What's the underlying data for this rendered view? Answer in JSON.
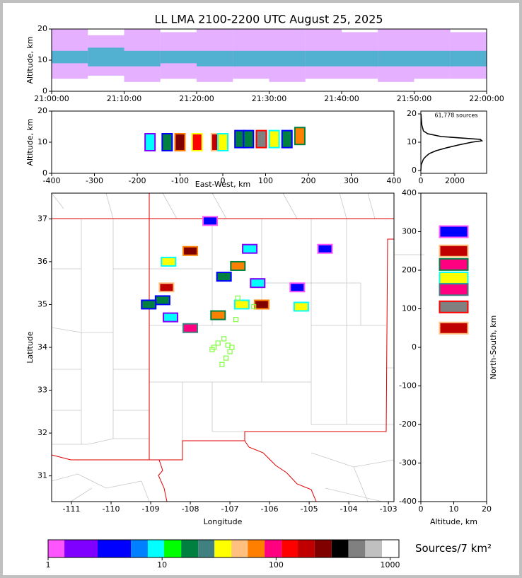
{
  "chart_data": [
    {
      "type": "time_height",
      "title": "LL LMA 2100-2200 UTC August 25, 2025",
      "ylabel": "Altitude, km",
      "xlim": [
        75600,
        79200
      ],
      "xticks": [
        {
          "value": 75600,
          "label": "21:00:00"
        },
        {
          "value": 76200,
          "label": "21:10:00"
        },
        {
          "value": 76800,
          "label": "21:20:00"
        },
        {
          "value": 77400,
          "label": "21:30:00"
        },
        {
          "value": 78000,
          "label": "21:40:00"
        },
        {
          "value": 78600,
          "label": "21:50:00"
        },
        {
          "value": 79200,
          "label": "22:00:00"
        }
      ],
      "ylim": [
        0,
        20
      ],
      "yticks": [
        0,
        10,
        20
      ],
      "x": [
        75750,
        76050,
        76350,
        76650,
        76950,
        77250,
        77550,
        77850,
        78150,
        78450,
        78750,
        79050
      ],
      "altitude_low": [
        4,
        5,
        3,
        4,
        3,
        4,
        3,
        4,
        4,
        3,
        4,
        4
      ],
      "altitude_high": [
        20,
        18,
        20,
        19,
        20,
        20,
        20,
        20,
        19,
        20,
        20,
        19
      ],
      "core_low": [
        9,
        8,
        8,
        9,
        8,
        8,
        8,
        8,
        8,
        8,
        8,
        8
      ],
      "core_high": [
        13,
        14,
        13,
        13,
        13,
        13,
        13,
        13,
        13,
        13,
        13,
        13
      ],
      "extent_color": "#d070ff",
      "core_color": "#20b0c0"
    },
    {
      "type": "heatmap",
      "xlabel": "East-West, km",
      "ylabel": "Altitude, km",
      "xlim": [
        -400,
        400
      ],
      "xticks": [
        -400,
        -300,
        -200,
        -100,
        0,
        100,
        200,
        300,
        400
      ],
      "ylim": [
        0,
        20
      ],
      "yticks": [
        0,
        10,
        20
      ],
      "x": [
        -170,
        -130,
        -100,
        -60,
        -15,
        0,
        40,
        60,
        90,
        120,
        150,
        180
      ],
      "y": [
        10,
        10,
        10,
        10,
        10,
        10,
        11,
        11,
        11,
        11,
        11,
        12
      ],
      "values": [
        10,
        20,
        300,
        150,
        200,
        30,
        20,
        15,
        600,
        30,
        20,
        60
      ]
    },
    {
      "type": "profile",
      "annotation": "61,778 sources",
      "xlim": [
        0,
        3875
      ],
      "xticks": [
        0,
        2000
      ],
      "ylim": [
        -1,
        21
      ],
      "yticks": [
        0,
        10,
        20
      ],
      "x": [
        0,
        20,
        150,
        300,
        500,
        900,
        1500,
        2200,
        3000,
        3600,
        3500,
        1200,
        400,
        150,
        60,
        30,
        10
      ],
      "y": [
        0,
        2,
        4,
        5,
        6,
        7,
        8,
        9,
        10,
        10.5,
        11,
        12,
        13,
        14,
        16,
        18,
        20
      ]
    },
    {
      "type": "map",
      "xlabel": "Longitude",
      "ylabel": "Latitude",
      "xlim": [
        -111.5,
        -102.86
      ],
      "xticks": [
        -111,
        -110,
        -109,
        -108,
        -107,
        -106,
        -105,
        -104,
        -103
      ],
      "ylim": [
        30.4,
        37.6
      ],
      "yticks": [
        31,
        32,
        33,
        34,
        35,
        36,
        37
      ],
      "x": [
        -108.0,
        -108.55,
        -107.15,
        -106.8,
        -108.6,
        -108.7,
        -107.3,
        -108.0,
        -106.2,
        -105.2,
        -106.7,
        -109.05,
        -108.5,
        -106.5,
        -107.5,
        -104.6,
        -105.3,
        -106.3
      ],
      "y": [
        36.25,
        36.0,
        35.65,
        35.9,
        35.4,
        35.1,
        34.75,
        34.45,
        35.0,
        34.95,
        35.0,
        35.0,
        34.7,
        36.3,
        36.95,
        36.3,
        35.4,
        35.5
      ],
      "values": [
        300,
        30,
        20,
        60,
        200,
        20,
        60,
        100,
        300,
        30,
        40,
        15,
        10,
        10,
        5,
        5,
        5,
        8
      ],
      "stations": {
        "color": "#80ff40",
        "x": [
          -106.8,
          -106.4,
          -106.85,
          -107.4,
          -107.3,
          -107.15,
          -107.05,
          -107.0,
          -106.95,
          -107.1,
          -107.2,
          -107.45
        ],
        "y": [
          35.15,
          34.95,
          34.65,
          34.0,
          34.1,
          34.2,
          34.05,
          33.9,
          34.0,
          33.75,
          33.6,
          33.95
        ]
      }
    },
    {
      "type": "heatmap",
      "xlabel": "Altitude, km",
      "ylabel": "North-South, km",
      "xlim": [
        0,
        20
      ],
      "xticks": [
        0,
        10,
        20
      ],
      "ylim": [
        -400,
        400
      ],
      "yticks": [
        -400,
        -300,
        -200,
        -100,
        0,
        100,
        200,
        300,
        400
      ],
      "x": [
        10,
        10,
        10,
        10,
        10,
        10,
        10
      ],
      "y": [
        300,
        250,
        215,
        180,
        150,
        105,
        50
      ],
      "values": [
        5,
        200,
        80,
        30,
        100,
        500,
        200
      ]
    },
    {
      "type": "colorbar",
      "label": "Sources/7 km²",
      "log": true,
      "xlim": [
        1,
        1195
      ],
      "xticks": [
        1,
        10,
        100,
        1000
      ],
      "bounds": [
        1,
        1.39,
        2.72,
        5.33,
        7.49,
        10.4,
        14.7,
        20.7,
        28.8,
        40.5,
        56.4,
        79.3,
        112,
        155,
        218,
        307,
        430,
        605,
        850,
        1195
      ],
      "colors": [
        "#ff55ff",
        "#8000ff",
        "#0000ff",
        "#0080ff",
        "#00ffff",
        "#00ff00",
        "#008040",
        "#408080",
        "#ffff00",
        "#ffc080",
        "#ff8000",
        "#ff0080",
        "#ff0000",
        "#c00000",
        "#800000",
        "#000000",
        "#808080",
        "#c0c0c0",
        "#ffffff"
      ]
    }
  ]
}
